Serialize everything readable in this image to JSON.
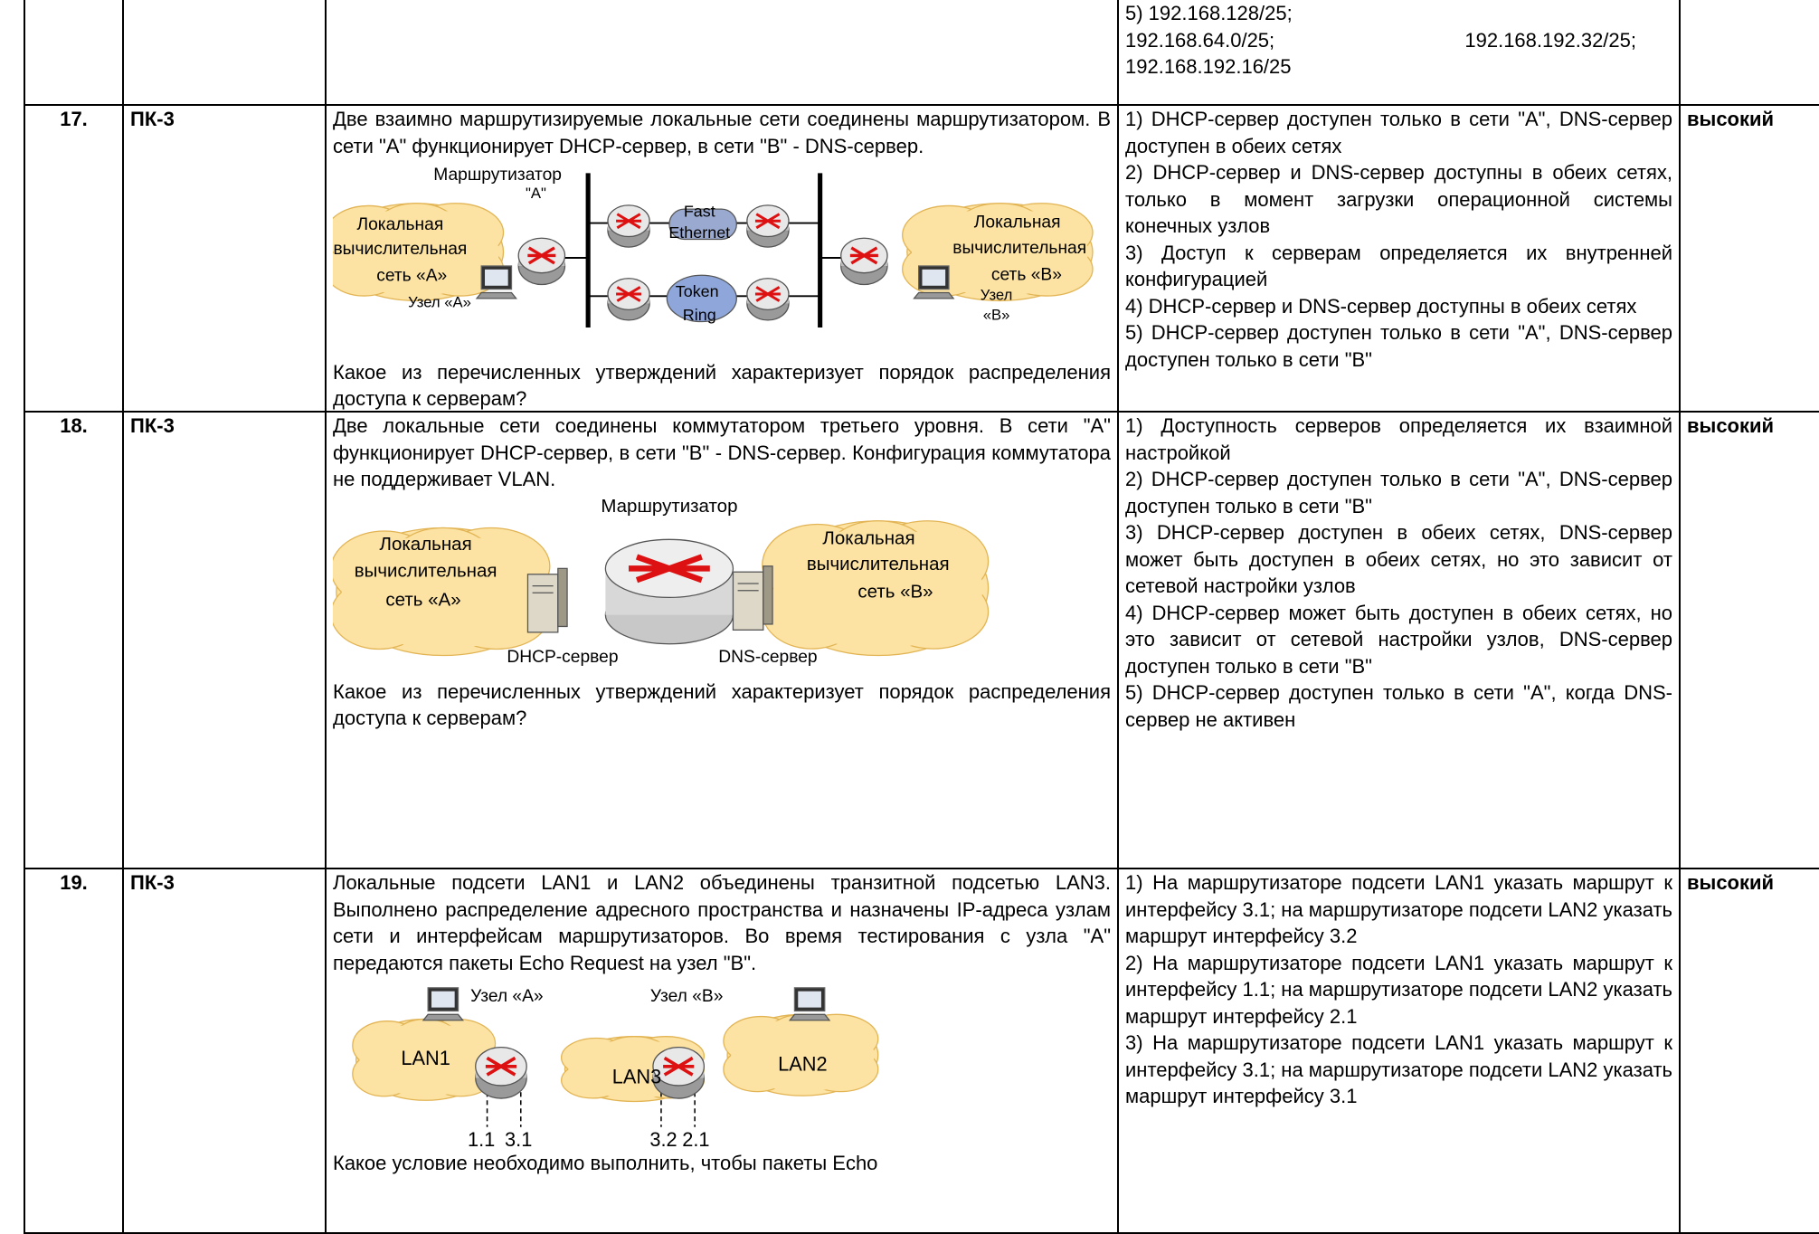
{
  "table": {
    "rows": [
      {
        "answer_lines": [
          "5) 192.168.128/25;",
          "192.168.64.0/25;",
          "192.168.192.32/25;",
          "192.168.192.16/25"
        ]
      },
      {
        "number": "17.",
        "competence": "ПК-3",
        "question_before": "Две взаимно маршрутизируемые локальные сети соединены маршрутизатором. В сети \"A\" функционирует DHCP-сервер, в сети \"B\" - DNS-сервер.",
        "diagram": [
          "Маршрутизатор",
          "\"A\"",
          "Локальная",
          "вычислительная",
          "сеть «А»",
          "Узел «А»",
          "Fast",
          "Ethernet",
          "Token",
          "Ring",
          "Локальная",
          "вычислительная",
          "сеть «В»",
          "Узел",
          "«В»"
        ],
        "question_after": "Какое из перечисленных утверждений характеризует порядок распределения доступа к серверам?",
        "answers": [
          "1) DHCP-сервер доступен только в сети \"A\", DNS-сервер доступен в обеих сетях",
          "2) DHCP-сервер и DNS-сервер доступны в обеих сетях, только в момент загрузки операционной системы конечных узлов",
          "3) Доступ к серверам определяется их внутренней конфигурацией",
          "4) DHCP-сервер и DNS-сервер доступны в обеих сетях",
          "5) DHCP-сервер доступен только в сети \"A\", DNS-сервер доступен только в сети \"B\""
        ],
        "level": "высокий"
      },
      {
        "number": "18.",
        "competence": "ПК-3",
        "question_before": "Две локальные сети соединены коммутатором третьего уровня. В сети \"A\" функционирует DHCP-сервер, в сети \"B\" - DNS-сервер. Конфигурация коммутатора не поддерживает VLAN.",
        "diagram": [
          "Маршрутизатор",
          "Локальная",
          "вычислительная",
          "сеть «А»",
          "Локальная",
          "вычислительная",
          "сеть «В»",
          "DHCP-сервер",
          "DNS-сервер"
        ],
        "question_after": "Какое из перечисленных утверждений характеризует порядок распределения доступа к серверам?",
        "answers": [
          "1) Доступность серверов определяется их взаимной настройкой",
          "2) DHCP-сервер доступен только в сети \"A\", DNS-сервер доступен только в сети \"B\"",
          "3) DHCP-сервер доступен в обеих сетях, DNS-сервер может быть доступен в обеих сетях, но это зависит от сетевой настройки узлов",
          "4) DHCP-сервер может быть доступен в обеих сетях, но это зависит от сетевой настройки узлов, DNS-сервер доступен только в сети \"B\"",
          "5) DHCP-сервер доступен только в сети \"A\", когда DNS-сервер не активен"
        ],
        "level": "высокий"
      },
      {
        "number": "19.",
        "competence": "ПК-3",
        "question_before": "Локальные подсети LAN1 и LAN2 объединены транзитной подсетью LAN3. Выполнено распределение адресного пространства и назначены IP-адреса узлам сети и интерфейсам маршрутизаторов. Во время тестирования с узла \"A\" передаются пакеты Echo Request на узел \"B\".",
        "diagram": [
          "Узел «А»",
          "Узел «В»",
          "LAN1",
          "LAN3",
          "LAN2",
          "1.1",
          "3.1",
          "3.2",
          "2.1"
        ],
        "question_after": "Какое условие необходимо выполнить, чтобы пакеты Echo",
        "answers": [
          "1) На маршрутизаторе подсети LAN1 указать маршрут к интерфейсу 3.1; на маршрутизаторе подсети LAN2 указать маршрут интерфейсу 3.2",
          "2) На маршрутизаторе подсети LAN1 указать маршрут к интерфейсу 1.1; на маршрутизаторе подсети LAN2 указать маршрут интерфейсу 2.1",
          "3) На маршрутизаторе подсети LAN1 указать маршрут к интерфейсу 3.1; на маршрутизаторе подсети LAN2 указать маршрут интерфейсу 3.1"
        ],
        "level": "высокий"
      }
    ]
  }
}
